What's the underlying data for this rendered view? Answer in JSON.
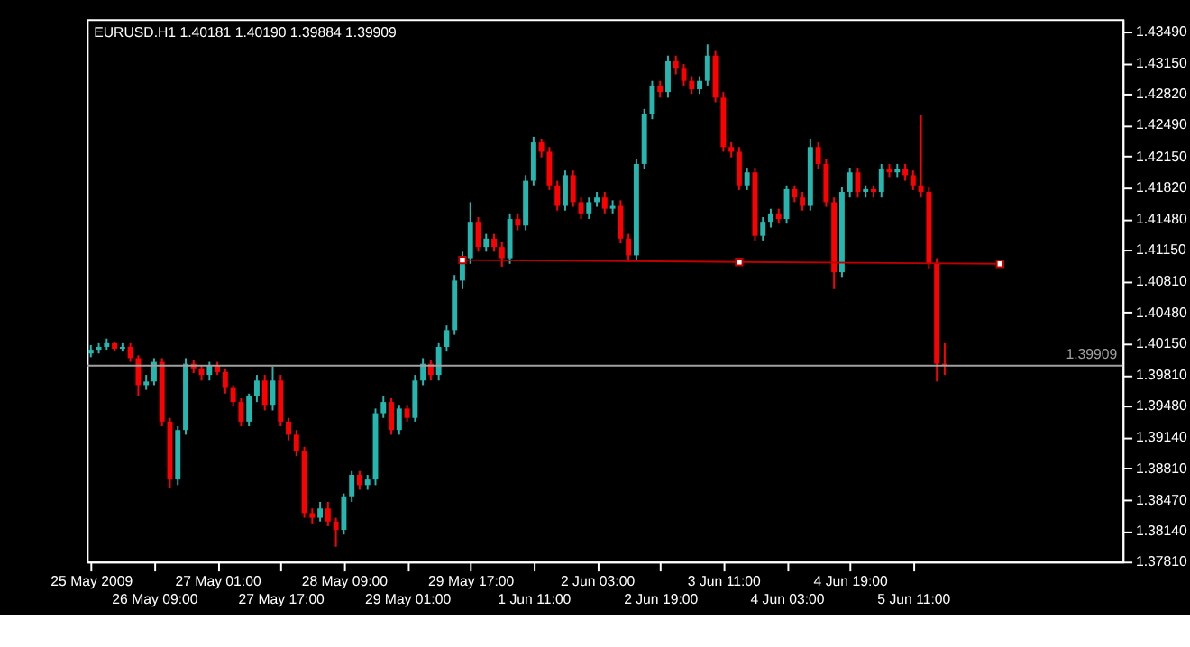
{
  "chart_data": {
    "type": "candlestick",
    "title": "EURUSD.H1  1.40181 1.40190 1.39884 1.39909",
    "categories": [
      "25 May 2009",
      null,
      null,
      null,
      null,
      null,
      null,
      null,
      "26 May 09:00",
      null,
      null,
      null,
      null,
      null,
      null,
      null,
      "27 May 01:00",
      null,
      null,
      null,
      null,
      null,
      null,
      null,
      "27 May 17:00",
      null,
      null,
      null,
      null,
      null,
      null,
      null,
      "28 May 09:00",
      null,
      null,
      null,
      null,
      null,
      null,
      null,
      "29 May 01:00",
      null,
      null,
      null,
      null,
      null,
      null,
      null,
      "29 May 17:00",
      null,
      null,
      null,
      null,
      null,
      null,
      null,
      "1 Jun 11:00",
      null,
      null,
      null,
      null,
      null,
      null,
      null,
      "2 Jun 03:00",
      null,
      null,
      null,
      null,
      null,
      null,
      null,
      "2 Jun 19:00",
      null,
      null,
      null,
      null,
      null,
      null,
      null,
      "3 Jun 11:00",
      null,
      null,
      null,
      null,
      null,
      null,
      null,
      "4 Jun 03:00",
      null,
      null,
      null,
      null,
      null,
      null,
      null,
      "4 Jun 19:00",
      null,
      null,
      null,
      null,
      null,
      null,
      null,
      "5 Jun 11:00",
      null,
      null,
      null,
      null,
      null,
      null,
      null,
      null,
      null,
      null,
      null,
      null,
      null,
      null,
      null,
      null,
      null,
      null,
      null,
      null,
      null,
      null,
      null,
      null,
      null,
      null
    ],
    "ylim": [
      1.3781,
      1.4362
    ],
    "yticks": [
      {
        "value": 1.4349,
        "label": "1.43490"
      },
      {
        "value": 1.4315,
        "label": "1.43150"
      },
      {
        "value": 1.4282,
        "label": "1.42820"
      },
      {
        "value": 1.4249,
        "label": "1.42490"
      },
      {
        "value": 1.4215,
        "label": "1.42150"
      },
      {
        "value": 1.4182,
        "label": "1.41820"
      },
      {
        "value": 1.4148,
        "label": "1.41480"
      },
      {
        "value": 1.4115,
        "label": "1.41150"
      },
      {
        "value": 1.4081,
        "label": "1.40810"
      },
      {
        "value": 1.4048,
        "label": "1.40480"
      },
      {
        "value": 1.4015,
        "label": "1.40150"
      },
      {
        "value": 1.3981,
        "label": "1.39810"
      },
      {
        "value": 1.3948,
        "label": "1.39480"
      },
      {
        "value": 1.3914,
        "label": "1.39140"
      },
      {
        "value": 1.3881,
        "label": "1.38810"
      },
      {
        "value": 1.3847,
        "label": "1.38470"
      },
      {
        "value": 1.3814,
        "label": "1.38140"
      },
      {
        "value": 1.3781,
        "label": "1.37810"
      }
    ],
    "ref_lines": [
      {
        "axis": "y",
        "value": 1.39909,
        "label": "1.39909",
        "color": "#a0a0a0"
      }
    ],
    "series": [
      {
        "type": "candlestick",
        "ohlc": [
          [
            1.4004,
            1.4013,
            1.4,
            1.4008
          ],
          [
            1.4008,
            1.4015,
            1.4004,
            1.4011
          ],
          [
            1.4011,
            1.402,
            1.4008,
            1.4015
          ],
          [
            1.4015,
            1.4016,
            1.4006,
            1.4009
          ],
          [
            1.4009,
            1.4015,
            1.4006,
            1.4011
          ],
          [
            1.4011,
            1.4015,
            1.3995,
            1.3999
          ],
          [
            1.3999,
            1.4002,
            1.3958,
            1.397
          ],
          [
            1.397,
            1.3981,
            1.3965,
            1.3974
          ],
          [
            1.3974,
            1.3999,
            1.397,
            1.3995
          ],
          [
            1.3995,
            1.3999,
            1.3926,
            1.3931
          ],
          [
            1.3931,
            1.3935,
            1.386,
            1.3869
          ],
          [
            1.3869,
            1.3926,
            1.3863,
            1.3922
          ],
          [
            1.3922,
            1.3999,
            1.3917,
            1.3993
          ],
          [
            1.3993,
            1.3997,
            1.3983,
            1.3988
          ],
          [
            1.3988,
            1.3991,
            1.3975,
            1.3981
          ],
          [
            1.3981,
            1.3995,
            1.3975,
            1.3991
          ],
          [
            1.3991,
            1.3995,
            1.3981,
            1.3984
          ],
          [
            1.3984,
            1.3988,
            1.3961,
            1.3967
          ],
          [
            1.3967,
            1.397,
            1.3947,
            1.3952
          ],
          [
            1.3952,
            1.3956,
            1.3926,
            1.3931
          ],
          [
            1.3931,
            1.3961,
            1.3926,
            1.3958
          ],
          [
            1.3958,
            1.3981,
            1.3952,
            1.3975
          ],
          [
            1.3975,
            1.3981,
            1.3943,
            1.3949
          ],
          [
            1.3949,
            1.399,
            1.3943,
            1.3975
          ],
          [
            1.3975,
            1.3981,
            1.3926,
            1.3931
          ],
          [
            1.3931,
            1.3935,
            1.3911,
            1.3917
          ],
          [
            1.3917,
            1.3922,
            1.3894,
            1.3899
          ],
          [
            1.3899,
            1.3904,
            1.3828,
            1.3833
          ],
          [
            1.3833,
            1.3838,
            1.3822,
            1.3828
          ],
          [
            1.3828,
            1.3845,
            1.3824,
            1.3838
          ],
          [
            1.3838,
            1.3845,
            1.3819,
            1.3824
          ],
          [
            1.3824,
            1.3828,
            1.3797,
            1.3815
          ],
          [
            1.3815,
            1.3854,
            1.381,
            1.3851
          ],
          [
            1.3851,
            1.3878,
            1.3845,
            1.3874
          ],
          [
            1.3874,
            1.3878,
            1.3858,
            1.3863
          ],
          [
            1.3863,
            1.3874,
            1.3858,
            1.3869
          ],
          [
            1.3869,
            1.3945,
            1.3863,
            1.394
          ],
          [
            1.394,
            1.3958,
            1.3935,
            1.3952
          ],
          [
            1.3952,
            1.3956,
            1.3917,
            1.3922
          ],
          [
            1.3922,
            1.3949,
            1.3917,
            1.3945
          ],
          [
            1.3945,
            1.3949,
            1.3931,
            1.3935
          ],
          [
            1.3935,
            1.3981,
            1.3931,
            1.3975
          ],
          [
            1.3975,
            1.3999,
            1.397,
            1.3993
          ],
          [
            1.3993,
            1.3997,
            1.3975,
            1.3981
          ],
          [
            1.3981,
            1.4015,
            1.3975,
            1.4011
          ],
          [
            1.4011,
            1.4034,
            1.4006,
            1.4029
          ],
          [
            1.4029,
            1.4088,
            1.4024,
            1.4082
          ],
          [
            1.4082,
            1.4113,
            1.4073,
            1.4106
          ],
          [
            1.4106,
            1.4166,
            1.41,
            1.4145
          ],
          [
            1.4145,
            1.415,
            1.4113,
            1.4118
          ],
          [
            1.4118,
            1.4132,
            1.4113,
            1.4127
          ],
          [
            1.4127,
            1.4132,
            1.4113,
            1.4118
          ],
          [
            1.4118,
            1.4123,
            1.4097,
            1.4106
          ],
          [
            1.4106,
            1.4154,
            1.41,
            1.4148
          ],
          [
            1.4148,
            1.4154,
            1.4136,
            1.4141
          ],
          [
            1.4141,
            1.4195,
            1.4136,
            1.4189
          ],
          [
            1.4189,
            1.4236,
            1.4184,
            1.423
          ],
          [
            1.423,
            1.4234,
            1.4214,
            1.422
          ],
          [
            1.422,
            1.4225,
            1.4179,
            1.4184
          ],
          [
            1.4184,
            1.4189,
            1.4157,
            1.4162
          ],
          [
            1.4162,
            1.42,
            1.4157,
            1.4195
          ],
          [
            1.4195,
            1.42,
            1.4161,
            1.4166
          ],
          [
            1.4166,
            1.4171,
            1.4148,
            1.4154
          ],
          [
            1.4154,
            1.4171,
            1.4148,
            1.4166
          ],
          [
            1.4166,
            1.4177,
            1.4161,
            1.4171
          ],
          [
            1.4171,
            1.4177,
            1.4154,
            1.4159
          ],
          [
            1.4159,
            1.4168,
            1.4154,
            1.4162
          ],
          [
            1.4162,
            1.4168,
            1.4122,
            1.4127
          ],
          [
            1.4127,
            1.4132,
            1.4102,
            1.4109
          ],
          [
            1.4109,
            1.4212,
            1.4104,
            1.4207
          ],
          [
            1.4207,
            1.4266,
            1.4202,
            1.426
          ],
          [
            1.426,
            1.4296,
            1.4255,
            1.4291
          ],
          [
            1.4291,
            1.4296,
            1.4278,
            1.4284
          ],
          [
            1.4284,
            1.4323,
            1.4278,
            1.4317
          ],
          [
            1.4317,
            1.4323,
            1.4303,
            1.4309
          ],
          [
            1.4309,
            1.4314,
            1.4291,
            1.4296
          ],
          [
            1.4296,
            1.4301,
            1.4282,
            1.4287
          ],
          [
            1.4287,
            1.4301,
            1.4282,
            1.4296
          ],
          [
            1.4296,
            1.4335,
            1.4291,
            1.4323
          ],
          [
            1.4323,
            1.4328,
            1.4273,
            1.4278
          ],
          [
            1.4278,
            1.4284,
            1.422,
            1.4225
          ],
          [
            1.4225,
            1.423,
            1.4214,
            1.422
          ],
          [
            1.422,
            1.4225,
            1.4179,
            1.4184
          ],
          [
            1.4184,
            1.4203,
            1.4179,
            1.4198
          ],
          [
            1.4198,
            1.4203,
            1.4125,
            1.413
          ],
          [
            1.413,
            1.415,
            1.4125,
            1.4145
          ],
          [
            1.4145,
            1.4159,
            1.4139,
            1.4154
          ],
          [
            1.4154,
            1.4159,
            1.4143,
            1.4148
          ],
          [
            1.4148,
            1.4184,
            1.4143,
            1.418
          ],
          [
            1.418,
            1.4184,
            1.4166,
            1.4171
          ],
          [
            1.4171,
            1.4177,
            1.4157,
            1.4162
          ],
          [
            1.4162,
            1.4234,
            1.4157,
            1.4225
          ],
          [
            1.4225,
            1.423,
            1.4202,
            1.4207
          ],
          [
            1.4207,
            1.4212,
            1.4161,
            1.4166
          ],
          [
            1.4166,
            1.4171,
            1.4073,
            1.4091
          ],
          [
            1.4091,
            1.4182,
            1.4086,
            1.4177
          ],
          [
            1.4177,
            1.4203,
            1.4171,
            1.4198
          ],
          [
            1.4198,
            1.4203,
            1.4171,
            1.4177
          ],
          [
            1.4177,
            1.4184,
            1.4171,
            1.418
          ],
          [
            1.418,
            1.4184,
            1.4171,
            1.4177
          ],
          [
            1.4177,
            1.4207,
            1.4171,
            1.4202
          ],
          [
            1.4202,
            1.4207,
            1.4193,
            1.4198
          ],
          [
            1.4198,
            1.4207,
            1.4193,
            1.4202
          ],
          [
            1.4202,
            1.4207,
            1.4189,
            1.4195
          ],
          [
            1.4195,
            1.42,
            1.4179,
            1.4184
          ],
          [
            1.4184,
            1.4259,
            1.4171,
            1.4177
          ],
          [
            1.4177,
            1.4182,
            1.4095,
            1.41
          ],
          [
            1.41,
            1.4106,
            1.3974,
            1.3993
          ],
          [
            1.3993,
            1.4015,
            1.3981,
            1.3991
          ],
          null,
          null,
          null,
          null,
          null,
          null,
          null,
          null,
          null,
          null,
          null,
          null,
          null,
          null,
          null,
          null,
          null,
          null,
          null,
          null,
          null,
          null
        ],
        "colors": [
          "#26b6b0",
          "#26b6b0",
          "#26b6b0",
          "#ff0000",
          "#26b6b0",
          "#ff0000",
          "#ff0000",
          "#26b6b0",
          "#26b6b0",
          "#ff0000",
          "#ff0000",
          "#26b6b0",
          "#26b6b0",
          "#ff0000",
          "#ff0000",
          "#26b6b0",
          "#ff0000",
          "#ff0000",
          "#ff0000",
          "#ff0000",
          "#26b6b0",
          "#26b6b0",
          "#ff0000",
          "#26b6b0",
          "#ff0000",
          "#ff0000",
          "#ff0000",
          "#ff0000",
          "#ff0000",
          "#26b6b0",
          "#ff0000",
          "#ff0000",
          "#26b6b0",
          "#26b6b0",
          "#ff0000",
          "#26b6b0",
          "#26b6b0",
          "#26b6b0",
          "#ff0000",
          "#26b6b0",
          "#ff0000",
          "#26b6b0",
          "#26b6b0",
          "#ff0000",
          "#26b6b0",
          "#26b6b0",
          "#26b6b0",
          "#26b6b0",
          "#26b6b0",
          "#ff0000",
          "#26b6b0",
          "#ff0000",
          "#ff0000",
          "#26b6b0",
          "#ff0000",
          "#26b6b0",
          "#26b6b0",
          "#ff0000",
          "#ff0000",
          "#ff0000",
          "#26b6b0",
          "#ff0000",
          "#ff0000",
          "#26b6b0",
          "#26b6b0",
          "#ff0000",
          "#26b6b0",
          "#ff0000",
          "#ff0000",
          "#26b6b0",
          "#26b6b0",
          "#26b6b0",
          "#ff0000",
          "#26b6b0",
          "#ff0000",
          "#ff0000",
          "#ff0000",
          "#26b6b0",
          "#26b6b0",
          "#ff0000",
          "#ff0000",
          "#ff0000",
          "#ff0000",
          "#26b6b0",
          "#ff0000",
          "#26b6b0",
          "#26b6b0",
          "#ff0000",
          "#26b6b0",
          "#ff0000",
          "#ff0000",
          "#26b6b0",
          "#ff0000",
          "#ff0000",
          "#ff0000",
          "#26b6b0",
          "#26b6b0",
          "#ff0000",
          "#26b6b0",
          "#ff0000",
          "#26b6b0",
          "#ff0000",
          "#26b6b0",
          "#ff0000",
          "#ff0000",
          "#ff0000",
          "#ff0000",
          "#ff0000",
          "#ff0000",
          null,
          null,
          null,
          null,
          null,
          null,
          null,
          null,
          null,
          null,
          null,
          null,
          null,
          null,
          null,
          null,
          null,
          null,
          null,
          null,
          null,
          null
        ]
      },
      {
        "type": "line",
        "color": "#c00000",
        "marker": "square",
        "values": [
          null,
          null,
          null,
          null,
          null,
          null,
          null,
          null,
          null,
          null,
          null,
          null,
          null,
          null,
          null,
          null,
          null,
          null,
          null,
          null,
          null,
          null,
          null,
          null,
          null,
          null,
          null,
          null,
          null,
          null,
          null,
          null,
          null,
          null,
          null,
          null,
          null,
          null,
          null,
          null,
          null,
          null,
          null,
          null,
          null,
          null,
          null,
          1.4104,
          null,
          null,
          null,
          null,
          null,
          null,
          null,
          null,
          null,
          null,
          null,
          null,
          null,
          null,
          null,
          null,
          null,
          null,
          null,
          null,
          null,
          null,
          null,
          null,
          null,
          null,
          null,
          null,
          null,
          null,
          null,
          null,
          null,
          null,
          1.4102,
          null,
          null,
          null,
          null,
          null,
          null,
          null,
          null,
          null,
          null,
          null,
          null,
          null,
          null,
          null,
          null,
          null,
          null,
          null,
          null,
          null,
          null,
          null,
          null,
          null,
          null,
          null,
          null,
          null,
          null,
          null,
          null,
          1.41,
          null,
          null,
          null,
          null,
          null,
          null,
          null,
          null,
          null,
          null,
          null,
          null,
          null,
          null,
          null
        ]
      }
    ]
  }
}
